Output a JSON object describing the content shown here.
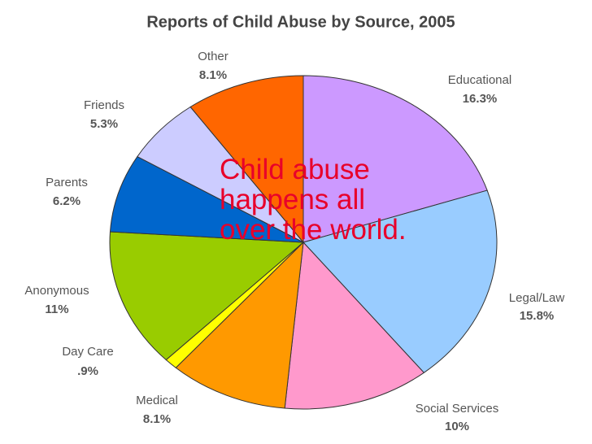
{
  "chart_data": {
    "type": "pie",
    "title": "Reports of Child Abuse by Source, 2005",
    "categories": [
      "Educational",
      "Legal/Law",
      "Social Services",
      "Medical",
      "Day Care",
      "Anonymous",
      "Parents",
      "Friends",
      "Other"
    ],
    "values": [
      16.3,
      15.8,
      10,
      8.1,
      0.9,
      11,
      6.2,
      5.3,
      8.1
    ],
    "value_labels": [
      "16.3%",
      "15.8%",
      "10%",
      "8.1%",
      ".9%",
      "11%",
      "6.2%",
      "5.3%",
      "8.1%"
    ],
    "colors": [
      "#cc99ff",
      "#99ccff",
      "#ff99cc",
      "#ff9900",
      "#ffff00",
      "#99cc00",
      "#0066cc",
      "#ccccff",
      "#ff6600"
    ],
    "annotation": "Child abuse happens all over the world."
  }
}
